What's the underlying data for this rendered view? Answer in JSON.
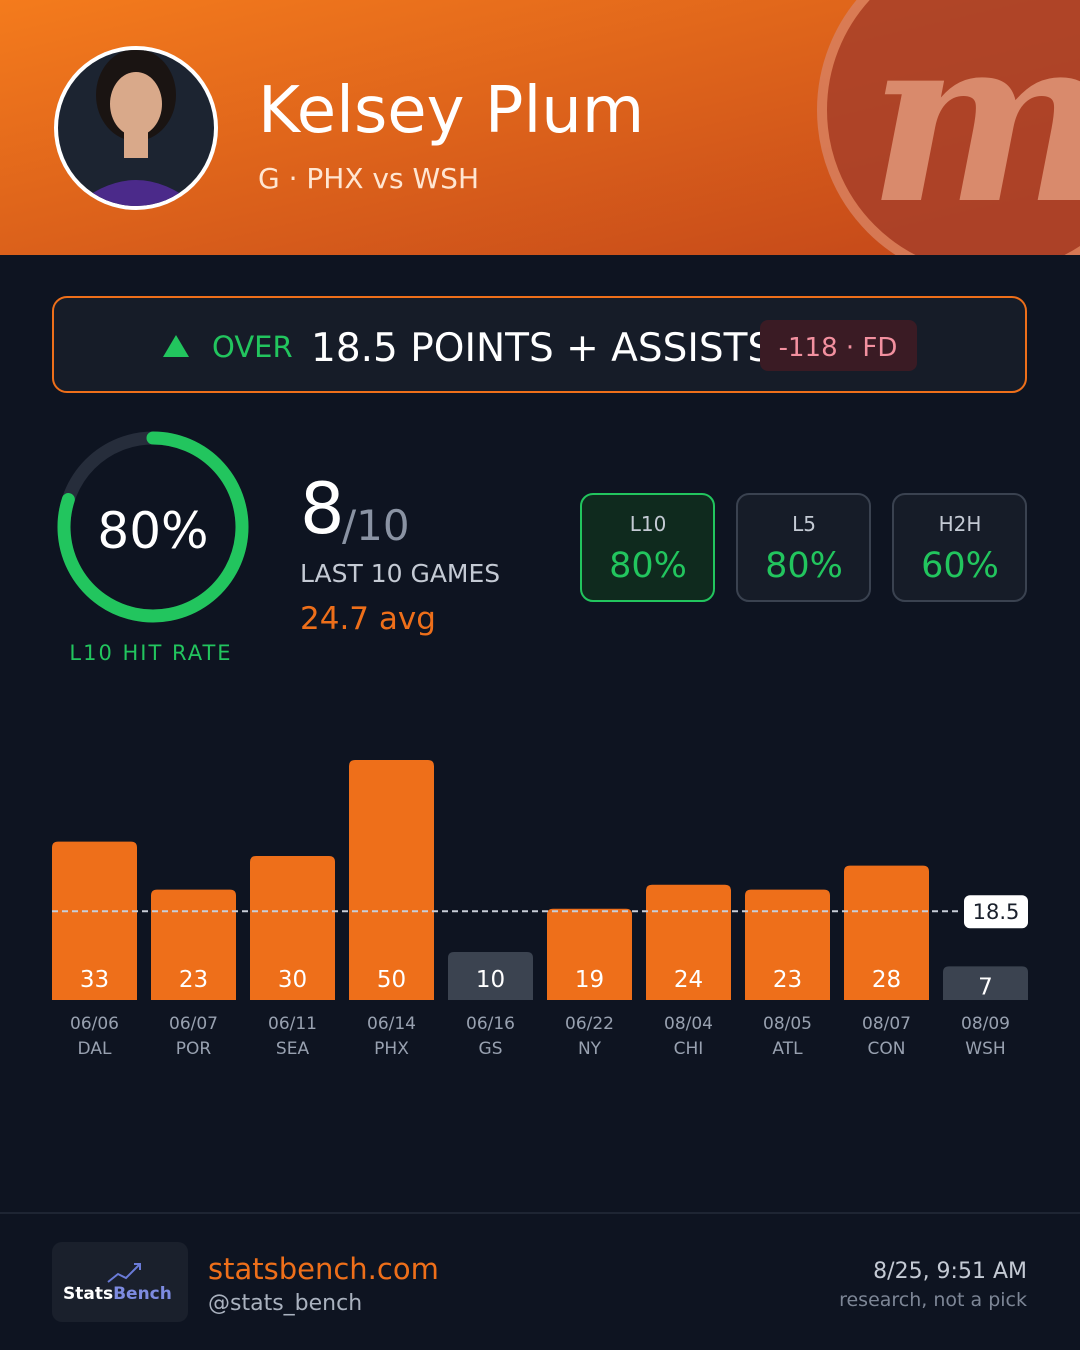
{
  "header": {
    "name": "Kelsey Plum",
    "subtitle": "G · PHX vs WSH"
  },
  "prop": {
    "side": "OVER",
    "line": "18.5 POINTS + ASSISTS",
    "odds": "-118 · FD"
  },
  "hit_rate": {
    "value": 80,
    "label": "80%",
    "caption": "L10 HIT RATE"
  },
  "record": {
    "hits": 8,
    "of": "/10",
    "caption": "LAST 10 GAMES",
    "average": "24.7 avg"
  },
  "splits": [
    {
      "name": "L10",
      "value": "80%"
    },
    {
      "name": "L5",
      "value": "80%"
    },
    {
      "name": "H2H",
      "value": "60%"
    }
  ],
  "chart_data": {
    "type": "bar",
    "categories": [
      "06/06",
      "06/07",
      "06/11",
      "06/14",
      "06/16",
      "06/22",
      "08/04",
      "08/05",
      "08/07",
      "08/09"
    ],
    "opponents": [
      "DAL",
      "POR",
      "SEA",
      "PHX",
      "GS",
      "NY",
      "CHI",
      "ATL",
      "CON",
      "WSH"
    ],
    "values": [
      33,
      23,
      30,
      50,
      10,
      19,
      24,
      23,
      28,
      7
    ],
    "line": 18.5,
    "color": "#ee6f1a",
    "miss_color": "#3b4350"
  },
  "footer": {
    "logo": [
      "Stats",
      "Bench"
    ],
    "site": "statsbench.com",
    "handle": "@stats_bench",
    "time": "8/25, 9:51 AM",
    "note": "research, not a pick"
  }
}
